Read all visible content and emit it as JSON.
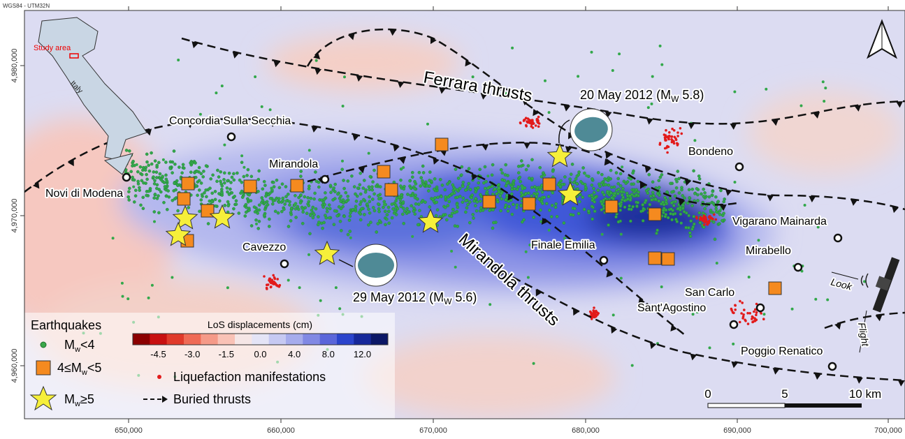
{
  "header": {
    "crs": "WGS84 - UTM32N"
  },
  "axes": {
    "x_ticks": [
      "650,000",
      "660,000",
      "670,000",
      "680,000",
      "690,000",
      "700,000"
    ],
    "y_ticks": [
      "4,980,000",
      "4,970,000",
      "4,960,000"
    ]
  },
  "inset": {
    "label": "Study area",
    "country": "Italy"
  },
  "towns": [
    "Concordia Sulla Secchia",
    "Mirandola",
    "Novi di Modena",
    "Cavezzo",
    "Finale Emilia",
    "Bondeno",
    "Vigarano Mainarda",
    "Mirabello",
    "San Carlo",
    "Sant'Agostino",
    "Poggio Renatico"
  ],
  "thrusts": [
    "Ferrara thrusts",
    "Mirandola thrusts"
  ],
  "events": [
    {
      "pre": "20 May 2012 (M",
      "sub": "W",
      "post": " 5.8)"
    },
    {
      "pre": "29 May 2012 (M",
      "sub": "W",
      "post": " 5.6)"
    }
  ],
  "legend": {
    "title": "Earthquakes",
    "items": [
      {
        "pre": "M",
        "sub": "w",
        "post": "<4"
      },
      {
        "pre": "4≤M",
        "sub": "w",
        "post": "<5"
      },
      {
        "pre": "M",
        "sub": "w",
        "post": "≥5"
      }
    ],
    "liquefaction": "Liquefaction manifestations",
    "buried": "Buried thrusts"
  },
  "colorbar": {
    "title": "LoS displacements (cm)",
    "ticks": [
      "-4.5",
      "-3.0",
      "-1.5",
      "0.0",
      "4.0",
      "8.0",
      "12.0"
    ]
  },
  "scale_bar": [
    "0",
    "5",
    "10 km"
  ],
  "satellite": {
    "look": "Look",
    "flight": "Flight"
  }
}
